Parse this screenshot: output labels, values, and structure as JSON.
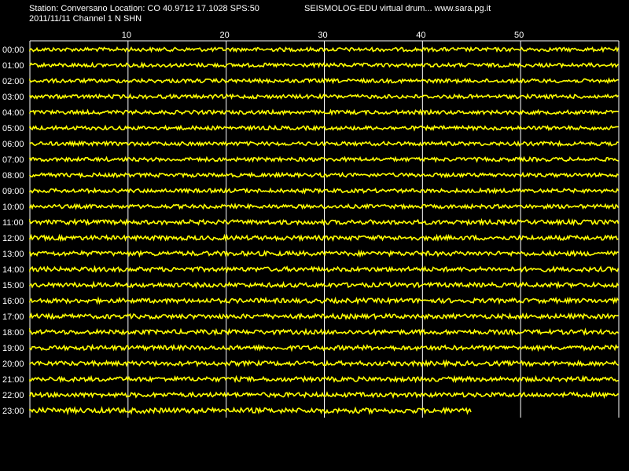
{
  "header": {
    "station_line": "Station: Conversano Location: CO 40.9712 17.1028 SPS:50",
    "date_line": "2011/11/11  Channel 1 N SHN",
    "app_line": "SEISMOLOG-EDU virtual drum... www.sara.pg.it"
  },
  "colors": {
    "background": "#000000",
    "trace": "#ffff00",
    "grid": "#ffffff",
    "text": "#ffffff"
  },
  "chart_data": {
    "type": "line",
    "title": "",
    "xlabel": "",
    "ylabel": "",
    "x_ticks": [
      "10",
      "20",
      "30",
      "40",
      "50"
    ],
    "x_tick_values": [
      10,
      20,
      30,
      40,
      50
    ],
    "xlim": [
      0,
      60
    ],
    "grid": true,
    "categories": [
      "00:00",
      "01:00",
      "02:00",
      "03:00",
      "04:00",
      "05:00",
      "06:00",
      "07:00",
      "08:00",
      "09:00",
      "10:00",
      "11:00",
      "12:00",
      "13:00",
      "14:00",
      "15:00",
      "16:00",
      "17:00",
      "18:00",
      "19:00",
      "20:00",
      "21:00",
      "22:00",
      "23:00"
    ],
    "trace_end_minutes": [
      60,
      60,
      60,
      60,
      60,
      60,
      60,
      60,
      60,
      60,
      60,
      60,
      60,
      60,
      60,
      60,
      60,
      60,
      60,
      60,
      60,
      60,
      60,
      45
    ],
    "amplitude": [
      0.3,
      0.3,
      0.3,
      0.3,
      0.3,
      0.3,
      0.3,
      0.3,
      0.3,
      0.3,
      0.3,
      0.35,
      0.35,
      0.35,
      0.35,
      0.35,
      0.35,
      0.35,
      0.35,
      0.35,
      0.35,
      0.35,
      0.35,
      0.4
    ]
  }
}
